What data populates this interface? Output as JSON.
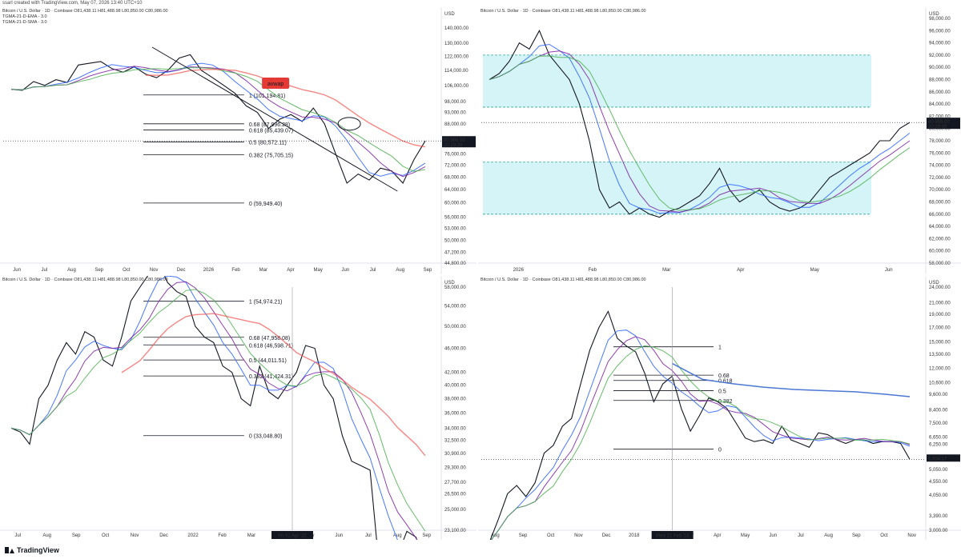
{
  "header": {
    "created_by": "ssarl created with TradingView.com, May 07, 2026 13:40 UTC+10"
  },
  "brand": {
    "name": "TradingView"
  },
  "colors": {
    "price": "#131722",
    "ema3": "#2962ff",
    "sma3": "#7b1fa2",
    "sma_green": "#4caf50",
    "sma_orange": "#ff9800",
    "avwap_red": "#ef5350",
    "fib_line": "#131722",
    "zone_cyan": "#b2ebf2",
    "blue_line": "#1e4fd8"
  },
  "chart_data": [
    {
      "id": "top-left",
      "type": "line",
      "title": "Bitcoin / U.S. Dollar · 1D · Coinbase  O81,438.11  H81,488.98  L80,850.00  C80,986.00",
      "indicators": [
        "TGMA-21-D-EMA - 3.0",
        "TGMA-21-D-SMA - 3.0"
      ],
      "currency": "USD",
      "x_ticks": [
        "Jun",
        "Jul",
        "Aug",
        "Sep",
        "Oct",
        "Nov",
        "Dec",
        "2026",
        "Feb",
        "Mar",
        "Apr",
        "May",
        "Jun",
        "Jul",
        "Aug",
        "Sep"
      ],
      "y_ticks": [
        "140,000.00",
        "130,000.00",
        "122,000.00",
        "114,000.00",
        "106,000.00",
        "98,000.00",
        "93,000.00",
        "88,000.00",
        "82,000.00",
        "76,000.00",
        "72,000.00",
        "68,000.00",
        "64,000.00",
        "60,000.00",
        "56,000.00",
        "53,000.00",
        "50,000.00",
        "47,200.00",
        "44,800.00"
      ],
      "last_price": "80,986.00",
      "countdown": "20:19:39",
      "annotation": "avwap",
      "fib_levels": [
        {
          "label": "1 (101,194.81)",
          "value": 101194.81
        },
        {
          "label": "0.68 (87,996.28)",
          "value": 87996.28
        },
        {
          "label": "0.618 (85,439.07)",
          "value": 85439.07
        },
        {
          "label": "0.5 (80,572.11)",
          "value": 80572.11
        },
        {
          "label": "0.382 (75,705.15)",
          "value": 75705.15
        },
        {
          "label": "0 (59,949.40)",
          "value": 59949.4
        }
      ],
      "series": [
        {
          "name": "price",
          "x": [
            0,
            0.3,
            0.6,
            0.9,
            1.2,
            1.5,
            1.8,
            2.1,
            2.4,
            2.7,
            3.0,
            3.3,
            3.6,
            3.9,
            4.2,
            4.5,
            4.8,
            5.1,
            5.4,
            5.7,
            6.0,
            6.3,
            6.6,
            6.9,
            7.2,
            7.5,
            7.8,
            8.1,
            8.4,
            8.7,
            9.0,
            9.3,
            9.6,
            9.9,
            10.2,
            10.5,
            10.8,
            11.1
          ],
          "values": [
            104000,
            103500,
            108000,
            106000,
            109000,
            107500,
            117000,
            118000,
            119000,
            115000,
            113000,
            116000,
            112000,
            110000,
            114000,
            121000,
            123000,
            114000,
            110000,
            106000,
            102000,
            96000,
            93000,
            86000,
            90000,
            92000,
            89000,
            95000,
            88000,
            76000,
            66000,
            69000,
            67000,
            71000,
            70000,
            66000,
            74000,
            80986
          ]
        }
      ]
    },
    {
      "id": "top-right",
      "type": "line",
      "title": "Bitcoin / U.S. Dollar · 1D · Coinbase  O81,438.11  H81,488.98  L80,850.00  C80,986.00",
      "currency": "USD",
      "x_ticks": [
        "2026",
        "Feb",
        "Mar",
        "Apr",
        "May",
        "Jun"
      ],
      "y_ticks": [
        "98,000.00",
        "96,000.00",
        "94,000.00",
        "92,000.00",
        "90,000.00",
        "88,000.00",
        "86,000.00",
        "84,000.00",
        "82,000.00",
        "80,000.00",
        "78,000.00",
        "76,000.00",
        "74,000.00",
        "72,000.00",
        "70,000.00",
        "68,000.00",
        "66,000.00",
        "64,000.00",
        "62,000.00",
        "60,000.00",
        "58,000.00"
      ],
      "last_price": "80,986.00",
      "countdown": "20:19:39",
      "series": [
        {
          "name": "price",
          "x": [
            0,
            0.1,
            0.2,
            0.3,
            0.4,
            0.5,
            0.6,
            0.7,
            0.8,
            0.9,
            1.0,
            1.1,
            1.2,
            1.3,
            1.4,
            1.5,
            1.6,
            1.7,
            1.8,
            1.9,
            2.0,
            2.1,
            2.2,
            2.3,
            2.4,
            2.5,
            2.6,
            2.7,
            2.8,
            2.9,
            3.0,
            3.1,
            3.2,
            3.3,
            3.4,
            3.5,
            3.6,
            3.7,
            3.8,
            3.9,
            4.0,
            4.1,
            4.2
          ],
          "values": [
            88000,
            89000,
            91000,
            94000,
            93000,
            96000,
            92000,
            90000,
            88000,
            84000,
            78000,
            70000,
            67000,
            68000,
            66000,
            67000,
            66000,
            65500,
            66500,
            67000,
            68000,
            69000,
            71000,
            73500,
            70000,
            68000,
            69000,
            70000,
            68000,
            67000,
            66500,
            67000,
            68000,
            70000,
            72000,
            73000,
            74000,
            75000,
            76000,
            78000,
            78000,
            80000,
            81000
          ]
        }
      ],
      "zones": [
        {
          "from": 83500,
          "to": 92000
        },
        {
          "from": 66000,
          "to": 74500
        }
      ]
    },
    {
      "id": "bottom-left",
      "type": "line",
      "title": "Bitcoin / U.S. Dollar · 1D · Coinbase  O81,438.11  H81,488.98  L80,850.00  C80,986.00",
      "currency": "USD",
      "x_ticks": [
        "Jul",
        "Aug",
        "Sep",
        "Oct",
        "Nov",
        "Dec",
        "2022",
        "Feb",
        "Mar",
        "Apr",
        "May",
        "Jun",
        "Jul",
        "Aug",
        "Sep"
      ],
      "cursor_date": "Fri 01 Apr '22",
      "y_ticks": [
        "58,000.00",
        "54,000.00",
        "50,000.00",
        "46,000.00",
        "42,000.00",
        "40,000.00",
        "38,000.00",
        "36,000.00",
        "34,000.00",
        "32,500.00",
        "30,900.00",
        "29,300.00",
        "27,700.00",
        "26,500.00",
        "25,000.00",
        "23,100.00"
      ],
      "fib_levels": [
        {
          "label": "1 (54,974.21)",
          "value": 54974.21
        },
        {
          "label": "0.68 (47,958.08)",
          "value": 47958.08
        },
        {
          "label": "0.618 (46,598.71)",
          "value": 46598.71
        },
        {
          "label": "0.5 (44,011.51)",
          "value": 44011.51
        },
        {
          "label": "0.382 (41,424.31)",
          "value": 41424.31
        },
        {
          "label": "0 (33,048.80)",
          "value": 33048.8
        }
      ],
      "series": [
        {
          "name": "price",
          "x": [
            0,
            0.3,
            0.6,
            0.9,
            1.2,
            1.5,
            1.8,
            2.1,
            2.4,
            2.7,
            3.0,
            3.3,
            3.6,
            3.9,
            4.2,
            4.5,
            4.8,
            5.1,
            5.4,
            5.7,
            6.0,
            6.3,
            6.6,
            6.9,
            7.2,
            7.5,
            7.8,
            8.1,
            8.4,
            8.7,
            9.0,
            9.3,
            9.6,
            9.9,
            10.2,
            10.5,
            10.8,
            11.1,
            11.4,
            11.7,
            12.0,
            12.3,
            12.6,
            12.9,
            13.2,
            13.5
          ],
          "values": [
            34000,
            33500,
            32000,
            38000,
            40000,
            44000,
            47000,
            45000,
            49000,
            48000,
            44000,
            43000,
            48000,
            55000,
            58000,
            61000,
            64000,
            59000,
            57000,
            56000,
            50000,
            48000,
            47000,
            43000,
            42000,
            38000,
            37000,
            43000,
            39000,
            38000,
            40000,
            42000,
            46500,
            46000,
            40000,
            38000,
            33000,
            30000,
            29500,
            29000,
            20000,
            19000,
            21000,
            23000,
            22500,
            20000
          ]
        }
      ]
    },
    {
      "id": "bottom-right",
      "type": "line",
      "title": "Bitcoin / U.S. Dollar · 1D · Coinbase  O81,438.11  H81,488.98  L80,850.00  C80,986.00",
      "currency": "USD",
      "x_ticks": [
        "Aug",
        "Sep",
        "Oct",
        "Nov",
        "Dec",
        "2018",
        "Feb",
        "Mar",
        "Apr",
        "May",
        "Jun",
        "Jul",
        "Aug",
        "Sep",
        "Oct",
        "Nov"
      ],
      "cursor_date": "Wed 21 Feb '18",
      "y_ticks": [
        "24,000.00",
        "21,000.00",
        "19,000.00",
        "17,000.00",
        "15,000.00",
        "13,500.00",
        "12,000.00",
        "10,600.00",
        "9,600.00",
        "8,400.00",
        "7,500.00",
        "6,650.00",
        "6,250.00",
        "5,500.00",
        "5,050.00",
        "4,550.00",
        "4,050.00",
        "3,390.00",
        "3,000.00"
      ],
      "last_price": "5,504.17",
      "fib_levels": [
        {
          "label": "1",
          "value": 14400
        },
        {
          "label": "0.68",
          "value": 11300
        },
        {
          "label": "0.618",
          "value": 10800
        },
        {
          "label": "0.5",
          "value": 9900
        },
        {
          "label": "0.382",
          "value": 9100
        },
        {
          "label": "0",
          "value": 6000
        }
      ],
      "series": [
        {
          "name": "price",
          "x": [
            0,
            0.3,
            0.6,
            0.9,
            1.2,
            1.5,
            1.8,
            2.1,
            2.4,
            2.7,
            3.0,
            3.3,
            3.6,
            3.9,
            4.2,
            4.5,
            4.8,
            5.1,
            5.4,
            5.7,
            6.0,
            6.3,
            6.6,
            6.9,
            7.2,
            7.5,
            7.8,
            8.1,
            8.4,
            8.7,
            9.0,
            9.3,
            9.6,
            9.9,
            10.2,
            10.5,
            10.8,
            11.1,
            11.4,
            11.7,
            12.0,
            12.3,
            12.6,
            12.9,
            13.2,
            13.5,
            13.8
          ],
          "values": [
            2700,
            3300,
            4100,
            4400,
            4000,
            4500,
            5800,
            6200,
            7300,
            7800,
            10500,
            14000,
            17000,
            19500,
            15500,
            14500,
            13800,
            11500,
            9000,
            10500,
            11200,
            8500,
            7000,
            8000,
            9300,
            9000,
            8500,
            7500,
            6600,
            6400,
            6500,
            6300,
            7300,
            6500,
            6300,
            6100,
            6900,
            6800,
            6500,
            6300,
            6500,
            6500,
            6300,
            6400,
            6400,
            6300,
            5504
          ]
        }
      ],
      "ma_series": {
        "name": "ma",
        "x": [
          6.0,
          7.0,
          8.0,
          9.0,
          10.0,
          11.0,
          12.0,
          13.0,
          13.8
        ],
        "values": [
          12500,
          10900,
          10500,
          10200,
          10000,
          9900,
          9800,
          9600,
          9400
        ]
      }
    }
  ]
}
